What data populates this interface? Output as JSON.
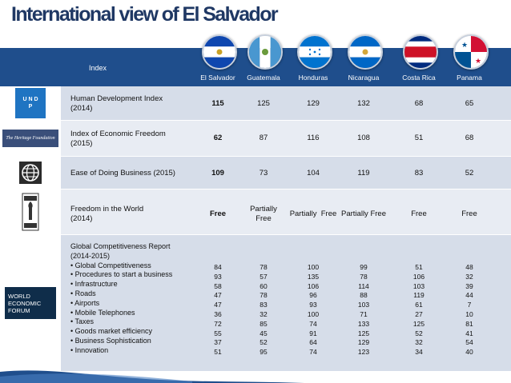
{
  "title": "International view of El Salvador",
  "header": {
    "index_label": "Index",
    "countries": [
      "El Salvador",
      "Guatemala",
      "Honduras",
      "Nicaragua",
      "Costa Rica",
      "Panama"
    ]
  },
  "logos": {
    "undp": "U N D P",
    "heritage": "The Heritage Foundation",
    "wef": [
      "WORLD",
      "ECONOMIC",
      "FORUM"
    ]
  },
  "rows": [
    {
      "label1": "Human Development Index",
      "label2": "(2014)",
      "values": [
        "115",
        "125",
        "129",
        "132",
        "68",
        "65"
      ]
    },
    {
      "label1": "Index of Economic Freedom",
      "label2": "(2015)",
      "values": [
        "62",
        "87",
        "116",
        "108",
        "51",
        "68"
      ]
    },
    {
      "label1": "Ease of Doing Business (2015)",
      "label2": "",
      "values": [
        "109",
        "73",
        "104",
        "119",
        "83",
        "52"
      ]
    },
    {
      "label1": "Freedom in the World",
      "label2": "(2014)",
      "values": [
        "Free",
        "Partially Free",
        "Partially  Free",
        "Partially Free",
        "Free",
        "Free"
      ]
    }
  ],
  "gci": {
    "title1": "Global Competitiveness Report",
    "title2": "(2014-2015)",
    "items": [
      "Global Competitiveness",
      "Procedures to start a business",
      "Infrastructure",
      "Roads",
      "Airports",
      "Mobile Telephones",
      "Taxes",
      "Goods market efficiency",
      "Business Sophistication",
      "Innovation"
    ],
    "columns": [
      [
        "84",
        "93",
        "58",
        "47",
        "47",
        "36",
        "72",
        "55",
        "37",
        "51"
      ],
      [
        "78",
        "57",
        "60",
        "78",
        "83",
        "32",
        "85",
        "45",
        "52",
        "95"
      ],
      [
        "100",
        "135",
        "106",
        "96",
        "93",
        "100",
        "74",
        "91",
        "64",
        "74"
      ],
      [
        "99",
        "78",
        "114",
        "88",
        "103",
        "71",
        "133",
        "125",
        "129",
        "123"
      ],
      [
        "51",
        "106",
        "103",
        "119",
        "61",
        "27",
        "125",
        "52",
        "32",
        "34"
      ],
      [
        "48",
        "32",
        "39",
        "44",
        "7",
        "10",
        "81",
        "41",
        "54",
        "40"
      ]
    ]
  },
  "colors": {
    "title": "#1f3864",
    "header": "#1f4e8c",
    "band": "#d6dde9",
    "band_alt": "#e8ecf3"
  }
}
